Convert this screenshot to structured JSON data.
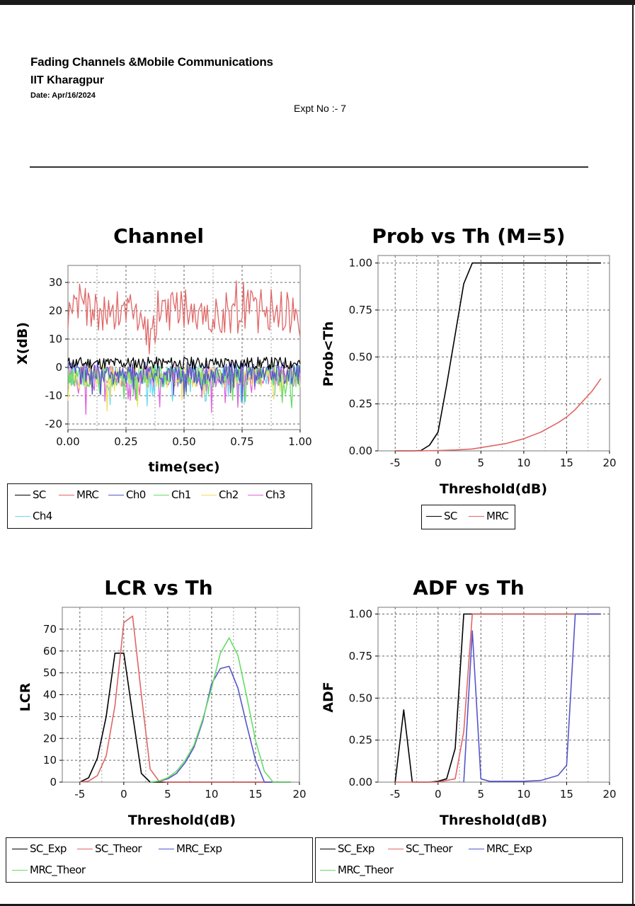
{
  "header": {
    "course": "Fading Channels &Mobile Communications",
    "institute": "IIT Kharagpur",
    "date": "Date: Apr/16/2024",
    "expt": "Expt No :- 7"
  },
  "colors": {
    "SC": "#000000",
    "MRC": "#e06666",
    "Ch0": "#5555cc",
    "Ch1": "#66dd66",
    "Ch2": "#f0e060",
    "Ch3": "#dd66dd",
    "Ch4": "#66ddee",
    "grid": "#555555"
  },
  "chart_data": [
    {
      "type": "line",
      "title": "Channel",
      "xlabel": "time(sec)",
      "ylabel": "X(dB)",
      "xlim": [
        0,
        1
      ],
      "ylim": [
        -22,
        36
      ],
      "xticks": [
        0,
        0.25,
        0.5,
        0.75,
        1
      ],
      "xtick_labels": [
        "0.00",
        "0.25",
        "0.50",
        "0.75",
        "1.00"
      ],
      "yticks": [
        -20,
        -10,
        0,
        10,
        20,
        30
      ],
      "ytick_labels": [
        "-20",
        "-10",
        "0",
        "10",
        "20",
        "30"
      ],
      "grid": true,
      "legend": "below",
      "legend_cols": 6,
      "series": [
        {
          "name": "SC",
          "color": "#000000",
          "noise": {
            "seed": 11,
            "n": 220,
            "mean": 1.5,
            "amp": 2.2,
            "spike": 0
          }
        },
        {
          "name": "MRC",
          "color": "#e06666",
          "noise": {
            "seed": 23,
            "n": 160,
            "mean": 20,
            "amp": 8,
            "spike": 10
          }
        },
        {
          "name": "Ch0",
          "color": "#5555cc",
          "noise": {
            "seed": 37,
            "n": 220,
            "mean": -2,
            "amp": 4,
            "spike": 8
          }
        },
        {
          "name": "Ch1",
          "color": "#66dd66",
          "noise": {
            "seed": 41,
            "n": 220,
            "mean": -3,
            "amp": 4,
            "spike": 10
          }
        },
        {
          "name": "Ch2",
          "color": "#f0e060",
          "noise": {
            "seed": 53,
            "n": 220,
            "mean": -3,
            "amp": 4,
            "spike": 8
          }
        },
        {
          "name": "Ch3",
          "color": "#dd66dd",
          "noise": {
            "seed": 67,
            "n": 220,
            "mean": -3,
            "amp": 4,
            "spike": 8
          }
        },
        {
          "name": "Ch4",
          "color": "#66ddee",
          "noise": {
            "seed": 79,
            "n": 220,
            "mean": -3,
            "amp": 4,
            "spike": 8
          }
        }
      ]
    },
    {
      "type": "line",
      "title": "Prob vs Th (M=5)",
      "xlabel": "Threshold(dB)",
      "ylabel": "Prob<Th",
      "xlim": [
        -7,
        20
      ],
      "ylim": [
        0,
        1.04
      ],
      "xticks": [
        -5,
        0,
        5,
        10,
        15,
        20
      ],
      "xtick_labels": [
        "-5",
        "0",
        "5",
        "10",
        "15",
        "20"
      ],
      "yticks": [
        0,
        0.25,
        0.5,
        0.75,
        1
      ],
      "ytick_labels": [
        "0.00",
        "0.25",
        "0.50",
        "0.75",
        "1.00"
      ],
      "grid": true,
      "legend": "below",
      "legend_cols": 2,
      "series": [
        {
          "name": "SC",
          "color": "#000000",
          "points": [
            [
              -5,
              0
            ],
            [
              -4,
              0
            ],
            [
              -3,
              0
            ],
            [
              -2,
              0.002
            ],
            [
              -1,
              0.03
            ],
            [
              0,
              0.1
            ],
            [
              1,
              0.35
            ],
            [
              2,
              0.62
            ],
            [
              3,
              0.89
            ],
            [
              4,
              1
            ],
            [
              5,
              1
            ],
            [
              10,
              1
            ],
            [
              15,
              1
            ],
            [
              19,
              1
            ]
          ]
        },
        {
          "name": "MRC",
          "color": "#e06666",
          "points": [
            [
              -5,
              0
            ],
            [
              -2,
              0
            ],
            [
              0,
              0.002
            ],
            [
              2,
              0.005
            ],
            [
              4,
              0.01
            ],
            [
              6,
              0.025
            ],
            [
              8,
              0.04
            ],
            [
              10,
              0.065
            ],
            [
              12,
              0.1
            ],
            [
              14,
              0.15
            ],
            [
              15,
              0.18
            ],
            [
              16,
              0.22
            ],
            [
              17,
              0.27
            ],
            [
              18,
              0.32
            ],
            [
              19,
              0.385
            ]
          ]
        }
      ]
    },
    {
      "type": "line",
      "title": "LCR vs Th",
      "xlabel": "Threshold(dB)",
      "ylabel": "LCR",
      "xlim": [
        -7,
        20
      ],
      "ylim": [
        0,
        80
      ],
      "xticks": [
        -5,
        0,
        5,
        10,
        15,
        20
      ],
      "xtick_labels": [
        "-5",
        "0",
        "5",
        "10",
        "15",
        "20"
      ],
      "yticks": [
        0,
        10,
        20,
        30,
        40,
        50,
        60,
        70
      ],
      "ytick_labels": [
        "0",
        "10",
        "20",
        "30",
        "40",
        "50",
        "60",
        "70"
      ],
      "grid": true,
      "legend": "below",
      "legend_cols": 3,
      "series": [
        {
          "name": "SC_Exp",
          "color": "#000000",
          "points": [
            [
              -5,
              0
            ],
            [
              -4,
              2
            ],
            [
              -3,
              11
            ],
            [
              -2,
              30
            ],
            [
              -1,
              59
            ],
            [
              0,
              59
            ],
            [
              1,
              31
            ],
            [
              2,
              4
            ],
            [
              3,
              0
            ],
            [
              4,
              0
            ],
            [
              5,
              0
            ],
            [
              10,
              0
            ],
            [
              15,
              0
            ],
            [
              19,
              0
            ]
          ]
        },
        {
          "name": "SC_Theor",
          "color": "#e06666",
          "points": [
            [
              -5,
              0
            ],
            [
              -4,
              0.5
            ],
            [
              -3,
              3
            ],
            [
              -2,
              12
            ],
            [
              -1,
              35
            ],
            [
              0,
              73
            ],
            [
              1,
              76
            ],
            [
              2,
              40
            ],
            [
              3,
              6
            ],
            [
              4,
              0.5
            ],
            [
              5,
              0
            ],
            [
              10,
              0
            ],
            [
              15,
              0
            ],
            [
              19,
              0
            ]
          ]
        },
        {
          "name": "MRC_Exp",
          "color": "#5555cc",
          "points": [
            [
              3,
              0
            ],
            [
              4,
              0.5
            ],
            [
              5,
              1.5
            ],
            [
              6,
              4
            ],
            [
              7,
              9
            ],
            [
              8,
              16
            ],
            [
              9,
              28
            ],
            [
              10,
              45
            ],
            [
              11,
              52
            ],
            [
              12,
              53
            ],
            [
              13,
              43
            ],
            [
              14,
              26
            ],
            [
              15,
              10
            ],
            [
              16,
              0
            ],
            [
              17,
              0
            ],
            [
              19,
              0
            ]
          ]
        },
        {
          "name": "MRC_Theor",
          "color": "#66dd66",
          "points": [
            [
              3,
              0
            ],
            [
              4,
              0.5
            ],
            [
              5,
              2
            ],
            [
              6,
              5
            ],
            [
              7,
              10
            ],
            [
              8,
              17
            ],
            [
              9,
              29
            ],
            [
              10,
              43
            ],
            [
              11,
              59
            ],
            [
              12,
              66
            ],
            [
              13,
              58
            ],
            [
              14,
              39
            ],
            [
              15,
              19
            ],
            [
              16,
              5
            ],
            [
              17,
              0
            ],
            [
              19,
              0
            ]
          ]
        }
      ]
    },
    {
      "type": "line",
      "title": "ADF vs Th",
      "xlabel": "Threshold(dB)",
      "ylabel": "ADF",
      "xlim": [
        -7,
        20
      ],
      "ylim": [
        0,
        1.04
      ],
      "xticks": [
        -5,
        0,
        5,
        10,
        15,
        20
      ],
      "xtick_labels": [
        "-5",
        "0",
        "5",
        "10",
        "15",
        "20"
      ],
      "yticks": [
        0,
        0.25,
        0.5,
        0.75,
        1
      ],
      "ytick_labels": [
        "0.00",
        "0.25",
        "0.50",
        "0.75",
        "1.00"
      ],
      "grid": true,
      "legend": "below",
      "legend_cols": 3,
      "series": [
        {
          "name": "SC_Exp",
          "color": "#000000",
          "points": [
            [
              -5,
              0
            ],
            [
              -4,
              0.43
            ],
            [
              -3,
              0
            ],
            [
              -1,
              0
            ],
            [
              0,
              0.005
            ],
            [
              1,
              0.02
            ],
            [
              2,
              0.2
            ],
            [
              3,
              1
            ],
            [
              4,
              1
            ],
            [
              10,
              1
            ],
            [
              15,
              1
            ],
            [
              19,
              1
            ]
          ]
        },
        {
          "name": "SC_Theor",
          "color": "#e06666",
          "points": [
            [
              -5,
              0
            ],
            [
              0,
              0
            ],
            [
              2,
              0.02
            ],
            [
              3,
              0.3
            ],
            [
              4,
              1
            ],
            [
              10,
              1
            ],
            [
              19,
              1
            ]
          ]
        },
        {
          "name": "MRC_Exp",
          "color": "#5555cc",
          "points": [
            [
              3,
              0
            ],
            [
              4,
              0.9
            ],
            [
              5,
              0.02
            ],
            [
              6,
              0.005
            ],
            [
              10,
              0.005
            ],
            [
              12,
              0.01
            ],
            [
              14,
              0.04
            ],
            [
              15,
              0.1
            ],
            [
              16,
              1
            ],
            [
              19,
              1
            ]
          ]
        },
        {
          "name": "MRC_Theor",
          "color": "#66dd66",
          "points": []
        }
      ]
    }
  ]
}
